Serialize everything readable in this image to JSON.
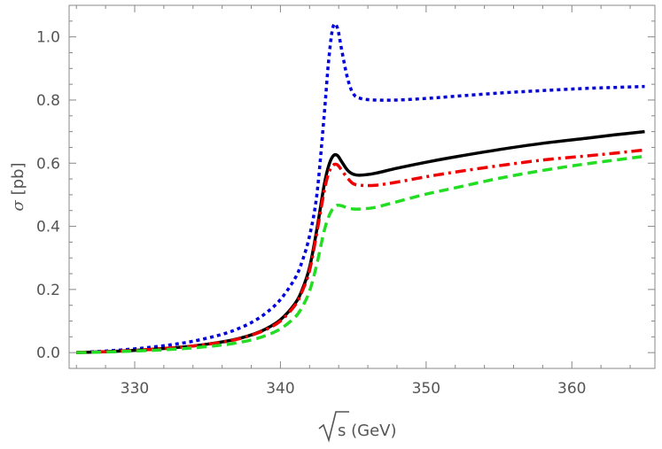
{
  "chart_data": {
    "type": "line",
    "title": "",
    "xlabel": "√s (GeV)",
    "xlabel_radicand": "s",
    "xlabel_unit": " (GeV)",
    "ylabel": "σ [pb]",
    "ylabel_symbol": "σ",
    "ylabel_unit": " [pb]",
    "xlim": [
      325.5,
      365.7
    ],
    "ylim": [
      -0.05,
      1.1
    ],
    "xticks": [
      330,
      340,
      350,
      360
    ],
    "xtick_labels": [
      "330",
      "340",
      "350",
      "360"
    ],
    "yticks": [
      0.0,
      0.2,
      0.4,
      0.6,
      0.8,
      1.0
    ],
    "ytick_labels": [
      "0.0",
      "0.2",
      "0.4",
      "0.6",
      "0.8",
      "1.0"
    ],
    "grid": false,
    "legend": "none",
    "series": [
      {
        "color": "#0000dd",
        "style": "dotted",
        "points": [
          [
            326,
            0.0
          ],
          [
            328,
            0.005
          ],
          [
            330,
            0.012
          ],
          [
            332,
            0.022
          ],
          [
            334,
            0.036
          ],
          [
            336,
            0.058
          ],
          [
            337,
            0.074
          ],
          [
            338,
            0.095
          ],
          [
            339,
            0.125
          ],
          [
            340,
            0.168
          ],
          [
            341,
            0.235
          ],
          [
            341.5,
            0.29
          ],
          [
            342,
            0.37
          ],
          [
            342.5,
            0.5
          ],
          [
            343,
            0.75
          ],
          [
            343.3,
            0.92
          ],
          [
            343.6,
            1.03
          ],
          [
            343.9,
            1.03
          ],
          [
            344.2,
            0.96
          ],
          [
            344.6,
            0.87
          ],
          [
            345,
            0.82
          ],
          [
            345.5,
            0.805
          ],
          [
            346.5,
            0.8
          ],
          [
            348,
            0.8
          ],
          [
            350,
            0.805
          ],
          [
            352,
            0.812
          ],
          [
            355,
            0.822
          ],
          [
            358,
            0.83
          ],
          [
            361,
            0.837
          ],
          [
            363,
            0.84
          ],
          [
            365,
            0.843
          ]
        ]
      },
      {
        "color": "#000000",
        "style": "solid",
        "points": [
          [
            326,
            0.0
          ],
          [
            328,
            0.003
          ],
          [
            330,
            0.007
          ],
          [
            332,
            0.013
          ],
          [
            334,
            0.021
          ],
          [
            336,
            0.034
          ],
          [
            337,
            0.043
          ],
          [
            338,
            0.056
          ],
          [
            339,
            0.075
          ],
          [
            340,
            0.104
          ],
          [
            341,
            0.155
          ],
          [
            341.5,
            0.2
          ],
          [
            342,
            0.27
          ],
          [
            342.5,
            0.39
          ],
          [
            343,
            0.53
          ],
          [
            343.3,
            0.59
          ],
          [
            343.6,
            0.622
          ],
          [
            343.9,
            0.625
          ],
          [
            344.2,
            0.605
          ],
          [
            344.6,
            0.578
          ],
          [
            345,
            0.565
          ],
          [
            345.5,
            0.562
          ],
          [
            346.5,
            0.568
          ],
          [
            348,
            0.584
          ],
          [
            350,
            0.603
          ],
          [
            352,
            0.62
          ],
          [
            355,
            0.643
          ],
          [
            358,
            0.663
          ],
          [
            361,
            0.679
          ],
          [
            363,
            0.69
          ],
          [
            365,
            0.7
          ]
        ]
      },
      {
        "color": "#ee0000",
        "style": "dashdot",
        "points": [
          [
            326,
            0.0
          ],
          [
            328,
            0.003
          ],
          [
            330,
            0.007
          ],
          [
            332,
            0.013
          ],
          [
            334,
            0.021
          ],
          [
            336,
            0.033
          ],
          [
            337,
            0.042
          ],
          [
            338,
            0.055
          ],
          [
            339,
            0.073
          ],
          [
            340,
            0.1
          ],
          [
            341,
            0.15
          ],
          [
            341.5,
            0.195
          ],
          [
            342,
            0.26
          ],
          [
            342.5,
            0.38
          ],
          [
            343,
            0.51
          ],
          [
            343.3,
            0.567
          ],
          [
            343.6,
            0.593
          ],
          [
            343.9,
            0.595
          ],
          [
            344.2,
            0.578
          ],
          [
            344.6,
            0.553
          ],
          [
            345,
            0.535
          ],
          [
            345.5,
            0.53
          ],
          [
            346.5,
            0.53
          ],
          [
            348,
            0.54
          ],
          [
            350,
            0.557
          ],
          [
            352,
            0.572
          ],
          [
            355,
            0.592
          ],
          [
            358,
            0.61
          ],
          [
            361,
            0.623
          ],
          [
            363,
            0.632
          ],
          [
            365,
            0.642
          ]
        ]
      },
      {
        "color": "#22dd22",
        "style": "dashed",
        "points": [
          [
            326,
            0.0
          ],
          [
            328,
            0.002
          ],
          [
            330,
            0.005
          ],
          [
            332,
            0.009
          ],
          [
            334,
            0.015
          ],
          [
            336,
            0.024
          ],
          [
            337,
            0.031
          ],
          [
            338,
            0.04
          ],
          [
            339,
            0.054
          ],
          [
            340,
            0.075
          ],
          [
            341,
            0.112
          ],
          [
            341.5,
            0.145
          ],
          [
            342,
            0.195
          ],
          [
            342.5,
            0.28
          ],
          [
            343,
            0.385
          ],
          [
            343.4,
            0.44
          ],
          [
            343.8,
            0.465
          ],
          [
            344.2,
            0.465
          ],
          [
            344.6,
            0.458
          ],
          [
            345,
            0.455
          ],
          [
            345.5,
            0.455
          ],
          [
            346.5,
            0.46
          ],
          [
            348,
            0.478
          ],
          [
            350,
            0.502
          ],
          [
            352,
            0.522
          ],
          [
            355,
            0.552
          ],
          [
            358,
            0.577
          ],
          [
            361,
            0.598
          ],
          [
            363,
            0.61
          ],
          [
            365,
            0.622
          ]
        ]
      }
    ]
  }
}
